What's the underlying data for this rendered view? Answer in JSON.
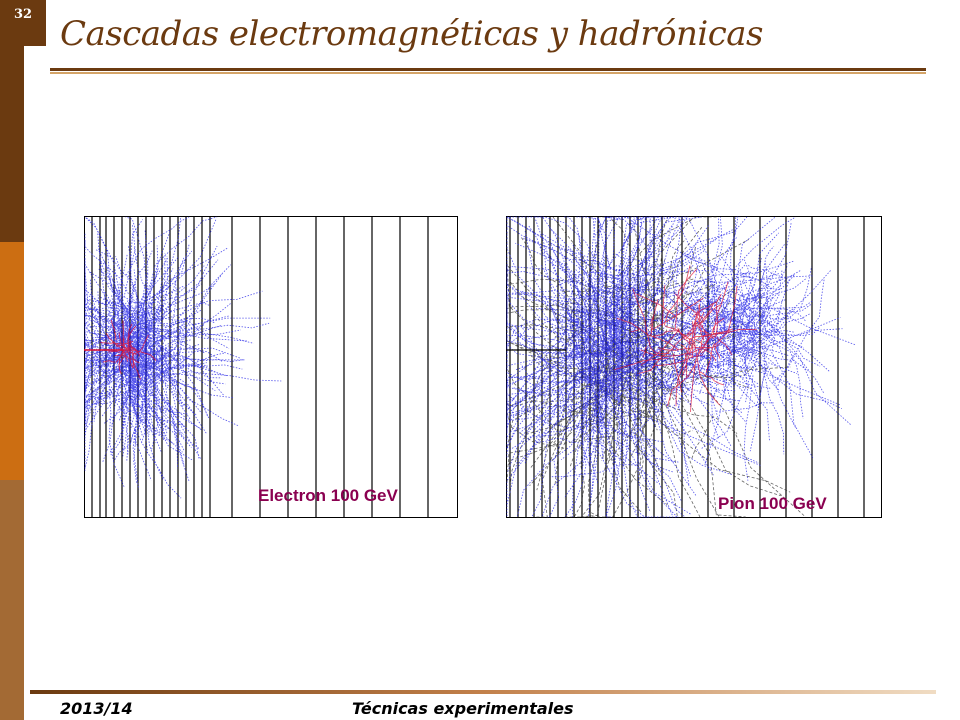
{
  "slide": {
    "number": "32",
    "title": "Cascadas electromagnéticas y hadrónicas"
  },
  "figures": [
    {
      "label": "Electron  100 GeV"
    },
    {
      "label": "Pion  100 GeV"
    }
  ],
  "colors": {
    "brand_dark": "#6b3a10",
    "brand_orange": "#cc6e12",
    "track_blue": "#1a1ae6",
    "track_red": "#e01030",
    "label_magenta": "#8a0050"
  },
  "footer": {
    "year": "2013/14",
    "course": "Técnicas experimentales"
  }
}
